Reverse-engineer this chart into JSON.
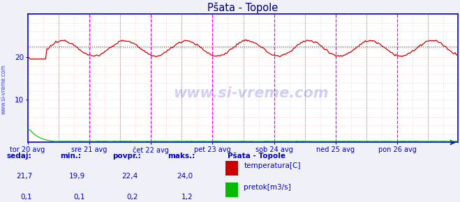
{
  "title": "Pšata - Topole",
  "bg_color": "#f0f0f8",
  "plot_bg_color": "#ffffff",
  "grid_h_color": "#ffaaaa",
  "grid_v_color": "#ffaaaa",
  "vline_day_color": "#ff00ff",
  "vline_noon_color": "#444444",
  "border_color": "#0000cc",
  "tick_color": "#0000cc",
  "label_color": "#0000cc",
  "watermark_color": "#0000cc",
  "watermark_text": "www.si-vreme.com",
  "sidevreme_text": "www.si-vreme.com",
  "title_color": "#000077",
  "avg_line_y": 22.4,
  "avg_line_color": "#cc0000",
  "temp_color": "#cc0000",
  "flow_color": "#00bb00",
  "y_min": 0,
  "y_max": 30,
  "y_ticks": [
    10,
    20
  ],
  "x_tick_labels": [
    "tor 20 avg",
    "sre 21 avg",
    "čet 22 avg",
    "pet 23 avg",
    "sob 24 avg",
    "ned 25 avg",
    "pon 26 avg"
  ],
  "legend_title": "Pšata - Topole",
  "legend_items": [
    {
      "label": "temperatura[C]",
      "color": "#cc0000"
    },
    {
      "label": "pretok[m3/s]",
      "color": "#00bb00"
    }
  ],
  "stats_headers": [
    "sedaj:",
    "min.:",
    "povpr.:",
    "maks.:"
  ],
  "stats_temp": [
    "21,7",
    "19,9",
    "22,4",
    "24,0"
  ],
  "stats_flow": [
    "0,1",
    "0,1",
    "0,2",
    "1,2"
  ],
  "n_points": 336,
  "days": 7,
  "temp_min": 19.5,
  "temp_max": 24.5,
  "temp_avg": 22.4,
  "flow_scale": 0.08
}
